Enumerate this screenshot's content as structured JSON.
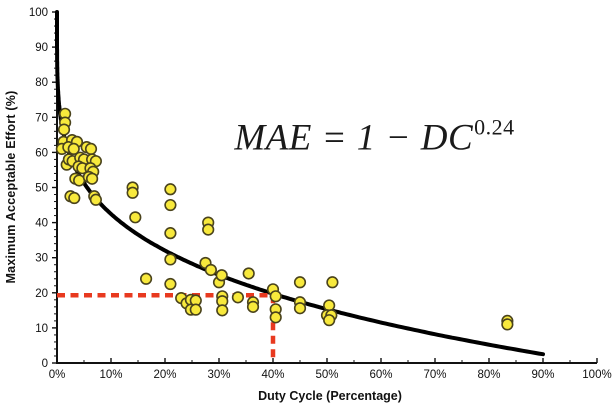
{
  "figure": {
    "equation": {
      "main": "MAE = 1 − DC",
      "exponent": "0.24"
    }
  },
  "chart_data": {
    "type": "scatter",
    "title": "",
    "xlabel": "Duty Cycle (Percentage)",
    "ylabel": "Maximum Acceptable Effort (%)",
    "xlim": [
      0,
      100
    ],
    "ylim": [
      0,
      100
    ],
    "grid": false,
    "legend": false,
    "x_tick_labels": [
      "0%",
      "10%",
      "20%",
      "30%",
      "40%",
      "50%",
      "60%",
      "70%",
      "80%",
      "90%",
      "100%"
    ],
    "x_tick_values": [
      0,
      10,
      20,
      30,
      40,
      50,
      60,
      70,
      80,
      90,
      100
    ],
    "x_minor_tick_step": 5,
    "y_tick_labels": [
      "0",
      "10",
      "20",
      "30",
      "40",
      "50",
      "60",
      "70",
      "80",
      "90",
      "100"
    ],
    "y_tick_values": [
      0,
      10,
      20,
      30,
      40,
      50,
      60,
      70,
      80,
      90,
      100
    ],
    "y_minor_tick_step": 2,
    "series": [
      {
        "name": "observed-data-points",
        "type": "scatter",
        "marker": {
          "shape": "circle",
          "fill": "#f8e93c",
          "stroke": "#4a431c",
          "radius": 5.3
        },
        "points": [
          [
            1.5,
            71
          ],
          [
            1.5,
            68.5
          ],
          [
            1.3,
            66.5
          ],
          [
            1.2,
            63
          ],
          [
            2.8,
            63.5
          ],
          [
            3.7,
            63
          ],
          [
            0.9,
            61
          ],
          [
            2.1,
            61.5
          ],
          [
            3.1,
            61
          ],
          [
            5.5,
            61.5
          ],
          [
            6.3,
            61
          ],
          [
            1.8,
            56.5
          ],
          [
            2.2,
            58
          ],
          [
            2.9,
            57.5
          ],
          [
            4.3,
            58.5
          ],
          [
            5,
            58
          ],
          [
            6.5,
            58
          ],
          [
            7.2,
            57.5
          ],
          [
            4,
            56
          ],
          [
            4.7,
            55.5
          ],
          [
            6.2,
            55.5
          ],
          [
            6.7,
            54.5
          ],
          [
            3.4,
            52.5
          ],
          [
            4.1,
            52
          ],
          [
            5.9,
            53
          ],
          [
            6.5,
            52.5
          ],
          [
            2.5,
            47.5
          ],
          [
            3.2,
            47
          ],
          [
            6.9,
            47.5
          ],
          [
            7.2,
            46.5
          ],
          [
            14,
            50
          ],
          [
            14,
            48.5
          ],
          [
            14.5,
            41.5
          ],
          [
            16.5,
            24
          ],
          [
            21,
            49.5
          ],
          [
            21,
            45
          ],
          [
            21,
            37
          ],
          [
            21,
            29.5
          ],
          [
            21,
            22.5
          ],
          [
            27.5,
            28.5
          ],
          [
            28,
            40
          ],
          [
            28,
            38
          ],
          [
            28.5,
            26.5
          ],
          [
            30,
            23
          ],
          [
            30.5,
            25
          ],
          [
            35.5,
            25.5
          ],
          [
            23,
            18.5
          ],
          [
            24,
            17
          ],
          [
            24.8,
            18
          ],
          [
            25.7,
            17.8
          ],
          [
            24.8,
            15.2
          ],
          [
            25.7,
            15.2
          ],
          [
            30.6,
            19
          ],
          [
            30.6,
            17.6
          ],
          [
            30.6,
            15
          ],
          [
            33.5,
            18.7
          ],
          [
            36.3,
            17.3
          ],
          [
            36.3,
            16
          ],
          [
            40,
            21
          ],
          [
            40.5,
            19
          ],
          [
            40.5,
            15.3
          ],
          [
            40.5,
            13
          ],
          [
            45,
            23
          ],
          [
            45,
            17.3
          ],
          [
            45,
            15.6
          ],
          [
            51,
            23
          ],
          [
            50.4,
            16.4
          ],
          [
            50,
            13.6
          ],
          [
            50.8,
            13.6
          ],
          [
            50.4,
            12.2
          ],
          [
            83.4,
            12
          ],
          [
            83.4,
            11
          ]
        ]
      },
      {
        "name": "model-curve",
        "type": "line",
        "equation_text": "MAE = 1 - DC^0.24",
        "exponent": 0.24,
        "dc_range_pct": [
          0,
          90
        ],
        "color": "#000000",
        "width": 4
      }
    ],
    "annotations": {
      "reference_marker": {
        "x_pct": 40,
        "y_pct": 19.3,
        "style": "dashed",
        "color": "#e8391f",
        "description": "red dashed crosshair at 40% duty cycle / ~19-20% MAE"
      }
    },
    "colors": {
      "axis": "#111111",
      "tick_text": "#111111",
      "background": "#ffffff"
    }
  }
}
